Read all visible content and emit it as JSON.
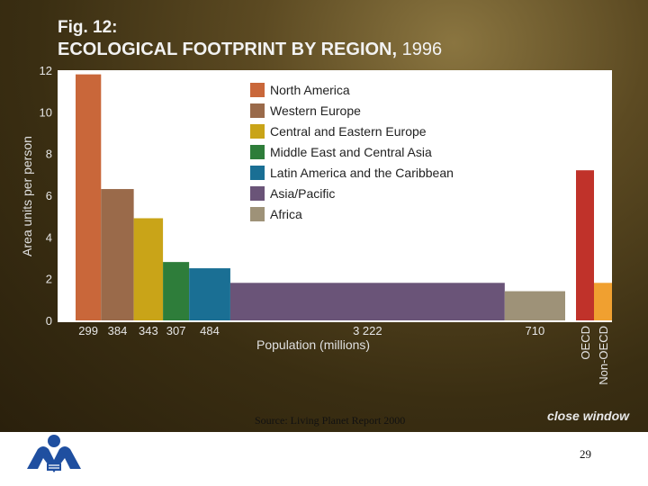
{
  "header": {
    "fig_number": "Fig. 12:",
    "fig_title": "ECOLOGICAL FOOTPRINT BY REGION,",
    "fig_year": "1996"
  },
  "source": "Source:  Living Planet Report 2000",
  "close_window": "close window",
  "page_number": "29",
  "logo_icon": "people-book-logo-icon",
  "chart_data": {
    "type": "bar",
    "title": "ECOLOGICAL FOOTPRINT BY REGION, 1996",
    "xlabel": "Population (millions)",
    "ylabel": "Area units per person",
    "ylim": [
      0,
      12
    ],
    "yticks": [
      0,
      2,
      4,
      6,
      8,
      10,
      12
    ],
    "grid": false,
    "legend_position": "top-center",
    "categories": [
      "North America",
      "Western Europe",
      "Central and Eastern Europe",
      "Middle East and Central Asia",
      "Latin America and the Caribbean",
      "Asia/Pacific",
      "Africa"
    ],
    "population_labels": [
      "299",
      "384",
      "343",
      "307",
      "484",
      "3 222",
      "710"
    ],
    "populations": [
      299,
      384,
      343,
      307,
      484,
      3222,
      710
    ],
    "values": [
      11.8,
      6.3,
      4.9,
      2.8,
      2.5,
      1.8,
      1.4
    ],
    "colors": [
      "#c9673a",
      "#9a6a4a",
      "#c9a418",
      "#2e7d3a",
      "#1a6f94",
      "#6a5478",
      "#9e9278"
    ],
    "oecd_bars": [
      {
        "label": "OECD",
        "value": 7.2,
        "color": "#c0322a"
      },
      {
        "label": "Non-OECD",
        "value": 1.8,
        "color": "#f0a030"
      }
    ]
  }
}
